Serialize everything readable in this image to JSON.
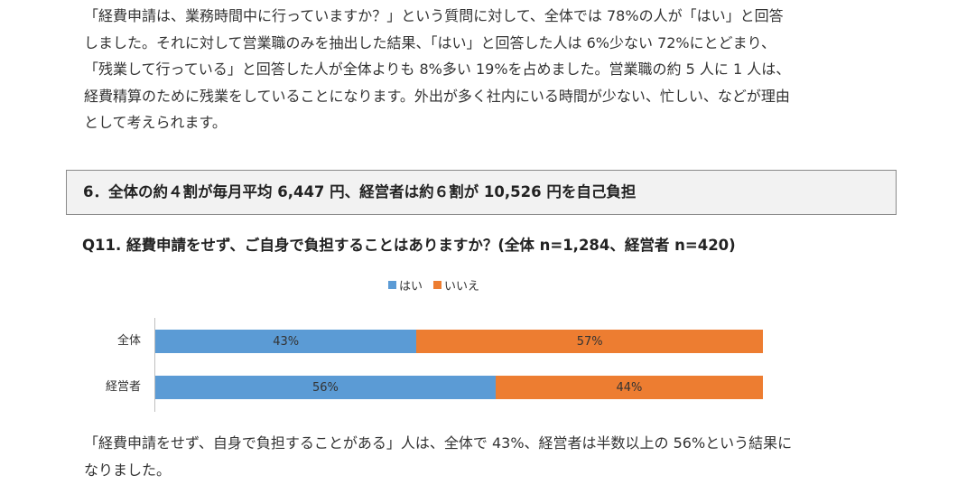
{
  "intro_paragraph": {
    "lines": [
      "「経費申請は、業務時間中に行っていますか？」という質問に対して、全体では 78%の人が「はい」と回答",
      "しました。それに対して営業職のみを抽出した結果、「はい」と回答した人は 6%少ない 72%にとどまり、",
      "「残業して行っている」と回答した人が全体よりも 8%多い 19%を占めました。営業職の約 5 人に 1 人は、",
      "経費精算のために残業をしていることになります。外出が多く社内にいる時間が少ない、忙しい、などが理由",
      "として考えられます。"
    ]
  },
  "section": {
    "heading": "6．全体の約４割が毎月平均 6,447 円、経営者は約６割が 10,526 円を自己負担"
  },
  "question": {
    "text": "Q11. 経費申請をせず、ご自身で負担することはありますか？(全体 n=1,284、経営者 n=420)"
  },
  "chart_data": {
    "type": "bar",
    "orientation": "horizontal",
    "stacked": true,
    "percent_stacked": true,
    "categories": [
      "全体",
      "経営者"
    ],
    "series": [
      {
        "name": "はい",
        "values": [
          43,
          56
        ],
        "labels": [
          "43%",
          "56%"
        ],
        "color": "#5b9bd5"
      },
      {
        "name": "いいえ",
        "values": [
          57,
          44
        ],
        "labels": [
          "57%",
          "44%"
        ],
        "color": "#ed7d31"
      }
    ],
    "xlim": [
      0,
      100
    ],
    "legend_position": "top",
    "grid": false
  },
  "closing_paragraph": {
    "lines": [
      "「経費申請をせず、自身で負担することがある」人は、全体で 43%、経営者は半数以上の 56%という結果に",
      "なりました。"
    ]
  }
}
